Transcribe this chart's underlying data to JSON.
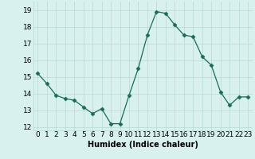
{
  "x": [
    0,
    1,
    2,
    3,
    4,
    5,
    6,
    7,
    8,
    9,
    10,
    11,
    12,
    13,
    14,
    15,
    16,
    17,
    18,
    19,
    20,
    21,
    22,
    23
  ],
  "y": [
    15.2,
    14.6,
    13.9,
    13.7,
    13.6,
    13.2,
    12.8,
    13.1,
    12.2,
    12.2,
    13.9,
    15.5,
    17.5,
    18.9,
    18.8,
    18.1,
    17.5,
    17.4,
    16.2,
    15.7,
    14.1,
    13.3,
    13.8,
    13.8
  ],
  "line_color": "#1a6b5a",
  "marker": "D",
  "marker_size": 2.5,
  "bg_color": "#d8f0ee",
  "grid_color": "#b8d8d4",
  "xlabel": "Humidex (Indice chaleur)",
  "ylim": [
    11.8,
    19.5
  ],
  "xlim": [
    -0.5,
    23.5
  ],
  "yticks": [
    12,
    13,
    14,
    15,
    16,
    17,
    18,
    19
  ],
  "xticks": [
    0,
    1,
    2,
    3,
    4,
    5,
    6,
    7,
    8,
    9,
    10,
    11,
    12,
    13,
    14,
    15,
    16,
    17,
    18,
    19,
    20,
    21,
    22,
    23
  ],
  "xtick_labels": [
    "0",
    "1",
    "2",
    "3",
    "4",
    "5",
    "6",
    "7",
    "8",
    "9",
    "10",
    "11",
    "12",
    "13",
    "14",
    "15",
    "16",
    "17",
    "18",
    "19",
    "20",
    "21",
    "22",
    "23"
  ],
  "xlabel_fontsize": 7,
  "tick_fontsize": 6.5
}
